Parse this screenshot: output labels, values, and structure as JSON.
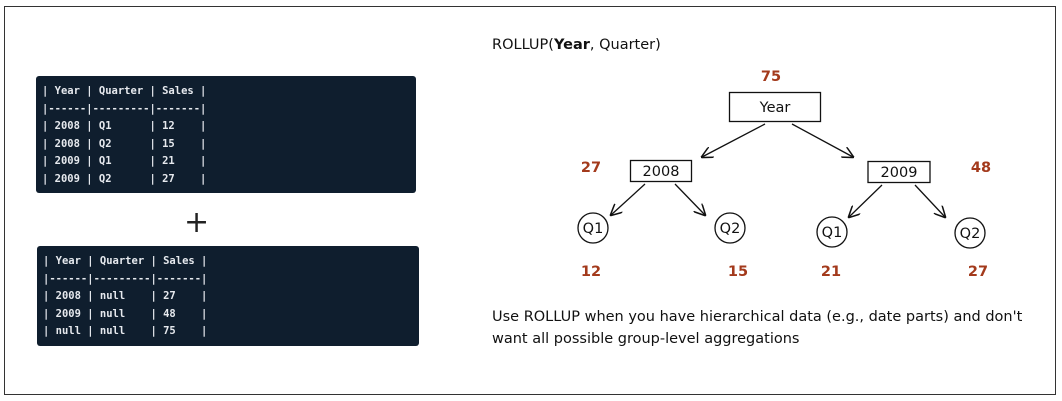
{
  "code_blocks": [
    {
      "lines": [
        "| Year | Quarter | Sales |",
        "|------|---------|-------|",
        "| 2008 | Q1      | 12    |",
        "| 2008 | Q2      | 15    |",
        "| 2009 | Q1      | 21    |",
        "| 2009 | Q2      | 27    |"
      ]
    },
    {
      "lines": [
        "| Year | Quarter | Sales |",
        "|------|---------|-------|",
        "| 2008 | null    | 27    |",
        "| 2009 | null    | 48    |",
        "| null | null    | 75    |"
      ]
    }
  ],
  "operator": "+",
  "title": {
    "prefix": "ROLLUP(",
    "bold": "Year",
    "suffix": ", Quarter)"
  },
  "nodes": [
    {
      "label": "Year",
      "value": 75
    },
    {
      "label": "2008",
      "value": 27
    },
    {
      "label": "2009",
      "value": 48
    },
    {
      "label": "Q1",
      "value": 12
    },
    {
      "label": "Q2",
      "value": 15
    },
    {
      "label": "Q1",
      "value": 21
    },
    {
      "label": "Q2",
      "value": 27
    }
  ],
  "caption": "Use ROLLUP when you have hierarchical data (e.g., date parts) and don't want all possible group-level aggregations"
}
